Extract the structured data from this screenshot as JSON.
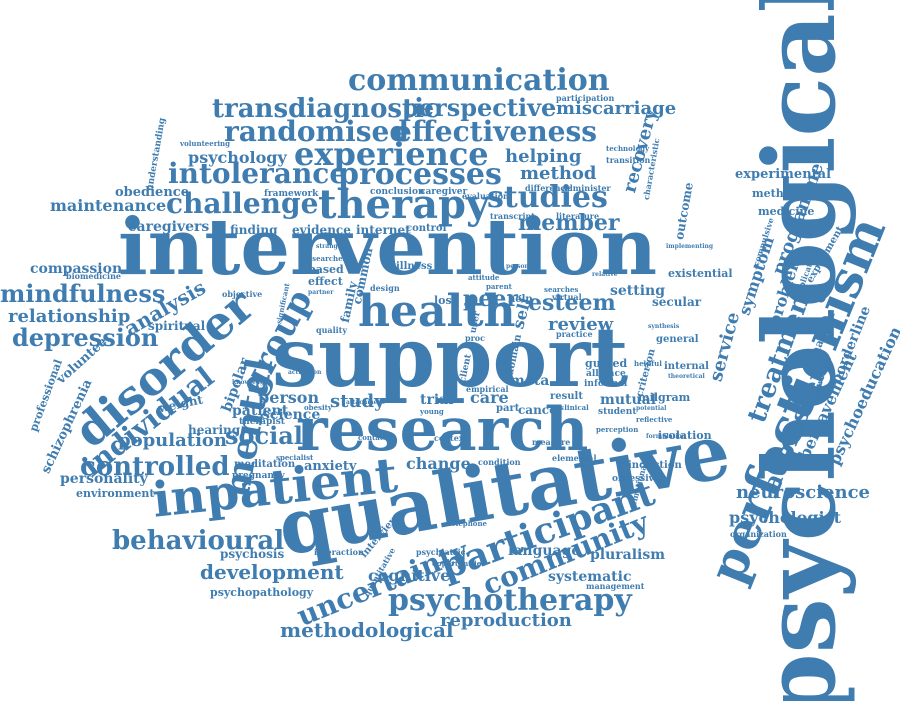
{
  "colors": {
    "word": "#3F7CB0",
    "background": "#FFFFFF"
  },
  "words": [
    {
      "text": "psychological",
      "rot": "up"
    },
    {
      "text": "intervention",
      "rot": "flat"
    },
    {
      "text": "support",
      "rot": "flat"
    },
    {
      "text": "qualitative",
      "rot": "flat"
    },
    {
      "text": "research",
      "rot": "flat"
    },
    {
      "text": "inpatient",
      "rot": "flat"
    },
    {
      "text": "perfectionism",
      "rot": "up"
    },
    {
      "text": "disorder",
      "rot": "up"
    },
    {
      "text": "health",
      "rot": "flat"
    },
    {
      "text": "therapy",
      "rot": "flat"
    },
    {
      "text": "participant",
      "rot": "up"
    },
    {
      "text": "communication",
      "rot": "flat"
    },
    {
      "text": "experience",
      "rot": "flat"
    },
    {
      "text": "processes",
      "rot": "flat"
    },
    {
      "text": "studies",
      "rot": "flat"
    },
    {
      "text": "effectiveness",
      "rot": "flat"
    },
    {
      "text": "randomised",
      "rot": "flat"
    },
    {
      "text": "transdiagnostic",
      "rot": "flat"
    },
    {
      "text": "perspective",
      "rot": "flat"
    },
    {
      "text": "intolerance",
      "rot": "flat"
    },
    {
      "text": "challenge",
      "rot": "flat"
    },
    {
      "text": "mental",
      "rot": "up"
    },
    {
      "text": "group",
      "rot": "up"
    },
    {
      "text": "individual",
      "rot": "up"
    },
    {
      "text": "community",
      "rot": "up"
    },
    {
      "text": "uncertainty",
      "rot": "up"
    },
    {
      "text": "psychotherapy",
      "rot": "flat"
    },
    {
      "text": "behavioural",
      "rot": "flat"
    },
    {
      "text": "controlled",
      "rot": "flat"
    },
    {
      "text": "treatment",
      "rot": "up"
    },
    {
      "text": "adolescent",
      "rot": "up"
    },
    {
      "text": "miscarriage",
      "rot": "flat"
    },
    {
      "text": "mindfulness",
      "rot": "flat"
    },
    {
      "text": "depression",
      "rot": "flat"
    },
    {
      "text": "member",
      "rot": "flat"
    },
    {
      "text": "esteem",
      "rot": "flat"
    },
    {
      "text": "social",
      "rot": "flat"
    },
    {
      "text": "development",
      "rot": "flat"
    },
    {
      "text": "methodological",
      "rot": "flat"
    },
    {
      "text": "reproduction",
      "rot": "flat"
    },
    {
      "text": "neuroscience",
      "rot": "flat"
    },
    {
      "text": "psychologist",
      "rot": "flat"
    },
    {
      "text": "psychology",
      "rot": "flat"
    },
    {
      "text": "helping",
      "rot": "flat"
    },
    {
      "text": "method",
      "rot": "flat"
    },
    {
      "text": "maintenance",
      "rot": "flat"
    },
    {
      "text": "relationship",
      "rot": "flat"
    },
    {
      "text": "analysis",
      "rot": "up"
    },
    {
      "text": "peer",
      "rot": "flat"
    },
    {
      "text": "review",
      "rot": "flat"
    },
    {
      "text": "recovery",
      "rot": "up"
    },
    {
      "text": "programme",
      "rot": "up"
    },
    {
      "text": "service",
      "rot": "up"
    },
    {
      "text": "symptom",
      "rot": "up"
    },
    {
      "text": "problem",
      "rot": "up"
    },
    {
      "text": "bereavement",
      "rot": "up"
    },
    {
      "text": "psychoeducation",
      "rot": "up"
    },
    {
      "text": "population",
      "rot": "flat"
    },
    {
      "text": "personality",
      "rot": "flat"
    },
    {
      "text": "caregivers",
      "rot": "flat"
    },
    {
      "text": "compassion",
      "rot": "flat"
    },
    {
      "text": "study",
      "rot": "flat"
    },
    {
      "text": "person",
      "rot": "flat"
    },
    {
      "text": "science",
      "rot": "flat"
    },
    {
      "text": "patient",
      "rot": "flat"
    },
    {
      "text": "bipolar",
      "rot": "up"
    },
    {
      "text": "care",
      "rot": "flat"
    },
    {
      "text": "trial",
      "rot": "flat"
    },
    {
      "text": "mutual",
      "rot": "flat"
    },
    {
      "text": "change",
      "rot": "flat"
    },
    {
      "text": "cognitive",
      "rot": "flat"
    },
    {
      "text": "systematic",
      "rot": "flat"
    },
    {
      "text": "pluralism",
      "rot": "flat"
    },
    {
      "text": "language",
      "rot": "flat"
    },
    {
      "text": "obedience",
      "rot": "flat"
    },
    {
      "text": "finding",
      "rot": "flat"
    },
    {
      "text": "evidence",
      "rot": "flat"
    },
    {
      "text": "internet",
      "rot": "flat"
    },
    {
      "text": "meta",
      "rot": "flat"
    },
    {
      "text": "setting",
      "rot": "flat"
    },
    {
      "text": "experimental",
      "rot": "flat"
    },
    {
      "text": "methodology",
      "rot": "flat"
    },
    {
      "text": "medicine",
      "rot": "flat"
    },
    {
      "text": "existential",
      "rot": "flat"
    },
    {
      "text": "secular",
      "rot": "flat"
    },
    {
      "text": "borderline",
      "rot": "up"
    },
    {
      "text": "behaviour",
      "rot": "up"
    },
    {
      "text": "outcome",
      "rot": "up"
    },
    {
      "text": "self",
      "rot": "up"
    },
    {
      "text": "anxiety",
      "rot": "flat"
    },
    {
      "text": "hearing",
      "rot": "flat"
    },
    {
      "text": "weight",
      "rot": "flat"
    },
    {
      "text": "spiritual",
      "rot": "flat"
    },
    {
      "text": "volunteer",
      "rot": "up"
    },
    {
      "text": "schizophrenia",
      "rot": "up"
    },
    {
      "text": "professional",
      "rot": "up"
    },
    {
      "text": "environment",
      "rot": "flat"
    },
    {
      "text": "psychosis",
      "rot": "flat"
    },
    {
      "text": "psychopathology",
      "rot": "flat"
    },
    {
      "text": "meditation",
      "rot": "flat"
    },
    {
      "text": "pregnancy",
      "rot": "flat"
    },
    {
      "text": "therapist",
      "rot": "flat"
    },
    {
      "text": "guided",
      "rot": "flat"
    },
    {
      "text": "alliance",
      "rot": "flat"
    },
    {
      "text": "informal",
      "rot": "flat"
    },
    {
      "text": "student",
      "rot": "flat"
    },
    {
      "text": "milgram",
      "rot": "flat"
    },
    {
      "text": "internal",
      "rot": "flat"
    },
    {
      "text": "general",
      "rot": "flat"
    },
    {
      "text": "isolation",
      "rot": "flat"
    },
    {
      "text": "induction",
      "rot": "flat"
    },
    {
      "text": "obsessive",
      "rot": "flat"
    },
    {
      "text": "cancer",
      "rot": "flat"
    },
    {
      "text": "part",
      "rot": "flat"
    },
    {
      "text": "result",
      "rot": "flat"
    },
    {
      "text": "loss",
      "rot": "flat"
    },
    {
      "text": "help",
      "rot": "flat"
    },
    {
      "text": "illness",
      "rot": "flat"
    },
    {
      "text": "based",
      "rot": "flat"
    },
    {
      "text": "effect",
      "rot": "flat"
    },
    {
      "text": "objective",
      "rot": "flat"
    },
    {
      "text": "biomedicine",
      "rot": "flat"
    },
    {
      "text": "framework",
      "rot": "flat"
    },
    {
      "text": "conclusion",
      "rot": "flat"
    },
    {
      "text": "caregiver",
      "rot": "flat"
    },
    {
      "text": "evaluation",
      "rot": "flat"
    },
    {
      "text": "difference",
      "rot": "flat"
    },
    {
      "text": "administer",
      "rot": "flat"
    },
    {
      "text": "transition",
      "rot": "flat"
    },
    {
      "text": "technology",
      "rot": "flat"
    },
    {
      "text": "participation",
      "rot": "flat"
    },
    {
      "text": "volunteering",
      "rot": "flat"
    },
    {
      "text": "transcript",
      "rot": "flat"
    },
    {
      "text": "literature",
      "rot": "flat"
    },
    {
      "text": "understanding",
      "rot": "up"
    },
    {
      "text": "characteristic",
      "rot": "up"
    },
    {
      "text": "emotional",
      "rot": "up"
    },
    {
      "text": "criterion",
      "rot": "up"
    },
    {
      "text": "interview",
      "rot": "up"
    },
    {
      "text": "quantitative",
      "rot": "up"
    },
    {
      "text": "implication",
      "rot": "up"
    },
    {
      "text": "background",
      "rot": "up"
    },
    {
      "text": "compulsive",
      "rot": "up"
    },
    {
      "text": "experiment",
      "rot": "up"
    },
    {
      "text": "organization",
      "rot": "flat"
    },
    {
      "text": "management",
      "rot": "flat"
    },
    {
      "text": "opportunities",
      "rot": "flat"
    },
    {
      "text": "interaction",
      "rot": "flat"
    },
    {
      "text": "psychiatric",
      "rot": "flat"
    },
    {
      "text": "telephone",
      "rot": "flat"
    },
    {
      "text": "empirical",
      "rot": "flat"
    },
    {
      "text": "control",
      "rot": "flat"
    },
    {
      "text": "design",
      "rot": "flat"
    },
    {
      "text": "virtual",
      "rot": "flat"
    },
    {
      "text": "searches",
      "rot": "flat"
    },
    {
      "text": "practice",
      "rot": "flat"
    },
    {
      "text": "condition",
      "rot": "flat"
    },
    {
      "text": "context",
      "rot": "flat"
    },
    {
      "text": "contact",
      "rot": "flat"
    },
    {
      "text": "measure",
      "rot": "flat"
    },
    {
      "text": "elemental",
      "rot": "flat"
    },
    {
      "text": "perception",
      "rot": "flat"
    },
    {
      "text": "clinical",
      "rot": "flat"
    },
    {
      "text": "helpful",
      "rot": "flat"
    },
    {
      "text": "reflective",
      "rot": "flat"
    },
    {
      "text": "potential",
      "rot": "flat"
    },
    {
      "text": "theoretical",
      "rot": "flat"
    },
    {
      "text": "attitude",
      "rot": "flat"
    },
    {
      "text": "parent",
      "rot": "flat"
    },
    {
      "text": "partner",
      "rot": "flat"
    },
    {
      "text": "researcher",
      "rot": "flat"
    },
    {
      "text": "quality",
      "rot": "flat"
    },
    {
      "text": "family",
      "rot": "up"
    },
    {
      "text": "common",
      "rot": "up"
    },
    {
      "text": "significant",
      "rot": "up"
    },
    {
      "text": "knowledge",
      "rot": "flat"
    },
    {
      "text": "activation",
      "rot": "flat"
    },
    {
      "text": "obesity",
      "rot": "flat"
    },
    {
      "text": "specialist",
      "rot": "flat"
    },
    {
      "text": "young",
      "rot": "flat"
    },
    {
      "text": "stranger",
      "rot": "flat"
    },
    {
      "text": "personal",
      "rot": "flat"
    },
    {
      "text": "domain",
      "rot": "up"
    },
    {
      "text": "theme",
      "rot": "up"
    },
    {
      "text": "client",
      "rot": "up"
    },
    {
      "text": "user",
      "rot": "up"
    },
    {
      "text": "proc",
      "rot": "flat"
    },
    {
      "text": "relative",
      "rot": "flat"
    },
    {
      "text": "implementing",
      "rot": "flat"
    },
    {
      "text": "synthesis",
      "rot": "flat"
    },
    {
      "text": "formulation",
      "rot": "flat"
    },
    {
      "text": "attachment",
      "rot": "flat"
    }
  ]
}
